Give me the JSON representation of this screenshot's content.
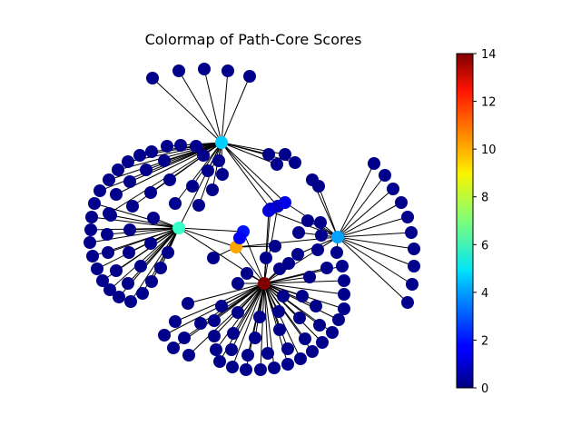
{
  "title": "Colormap of Path-Core Scores",
  "colorbar": {
    "min": 0,
    "max": 14,
    "ticks": [
      0,
      2,
      4,
      6,
      8,
      10,
      12,
      14
    ],
    "colormap": "jet"
  },
  "graph": {
    "node_color_default": "#00008b",
    "edge_color": "#000000",
    "hubs": [
      {
        "id": "hub-top",
        "score": 4.6
      },
      {
        "id": "hub-left",
        "score": 6.0
      },
      {
        "id": "hub-center",
        "score": 14.0
      },
      {
        "id": "hub-orange",
        "score": 10.0
      },
      {
        "id": "hub-right",
        "score": 4.0
      },
      {
        "id": "bridge-1",
        "score": 2.0
      },
      {
        "id": "bridge-2",
        "score": 1.6
      },
      {
        "id": "bridge-3",
        "score": 1.0
      },
      {
        "id": "bridge-4",
        "score": 1.0
      },
      {
        "id": "bridge-5",
        "score": 1.4
      },
      {
        "id": "bridge-6",
        "score": 1.2
      }
    ]
  }
}
